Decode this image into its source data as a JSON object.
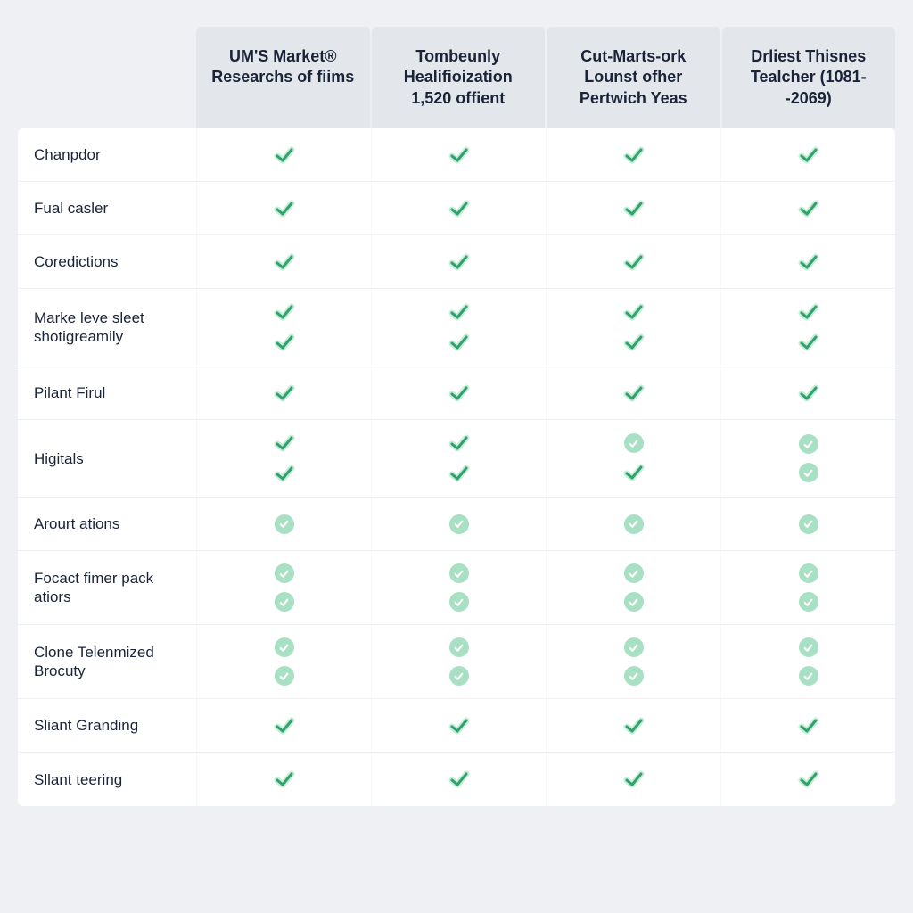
{
  "colors": {
    "page_bg": "#eef0f3",
    "header_bg": "#e3e6ea",
    "header_text": "#1a2438",
    "body_bg": "#ffffff",
    "row_border": "#edf0f3",
    "row_text": "#1a2438",
    "check_stroke": "#2fa36b",
    "check_fill_light": "#c7ecd9",
    "circle_bg": "#a8e0c4",
    "circle_check": "#ffffff"
  },
  "columns": [
    "UM'S Market® Researchs of fiims",
    "Tombeunly Healifioization 1,520 offient",
    "Cut-Marts-ork Lounst ofher Pertwich Yeas",
    "Drliest Thisnes Tealcher (1081--2069)"
  ],
  "rows": [
    {
      "label": "Chanpdor",
      "icons": [
        "check"
      ],
      "double": false
    },
    {
      "label": "Fual casler",
      "icons": [
        "check"
      ],
      "double": false
    },
    {
      "label": "Coredictions",
      "icons": [
        "check"
      ],
      "double": false
    },
    {
      "label": "Marke leve sleet shotigreamily",
      "icons": [
        "check",
        "check"
      ],
      "double": true
    },
    {
      "label": "Pilant Firul",
      "icons": [
        "check"
      ],
      "double": false
    },
    {
      "label": "Higitals",
      "icons": [
        "check",
        "circle"
      ],
      "double": true,
      "col_variant": [
        [
          "check",
          "check"
        ],
        [
          "check",
          "check"
        ],
        [
          "circle",
          "check"
        ],
        [
          "circle",
          "circle"
        ]
      ]
    },
    {
      "label": "Arourt ations",
      "icons": [
        "circle"
      ],
      "double": false
    },
    {
      "label": "Focact fimer pack atiors",
      "icons": [
        "circle",
        "circle"
      ],
      "double": true
    },
    {
      "label": "Clone Telenmized Brocuty",
      "icons": [
        "circle",
        "circle"
      ],
      "double": true
    },
    {
      "label": "Sliant Granding",
      "icons": [
        "check"
      ],
      "double": false
    },
    {
      "label": "Sllant teering",
      "icons": [
        "check"
      ],
      "double": false
    }
  ],
  "typography": {
    "header_fontsize": 18,
    "header_fontweight": 700,
    "row_fontsize": 17,
    "row_fontweight": 500
  }
}
